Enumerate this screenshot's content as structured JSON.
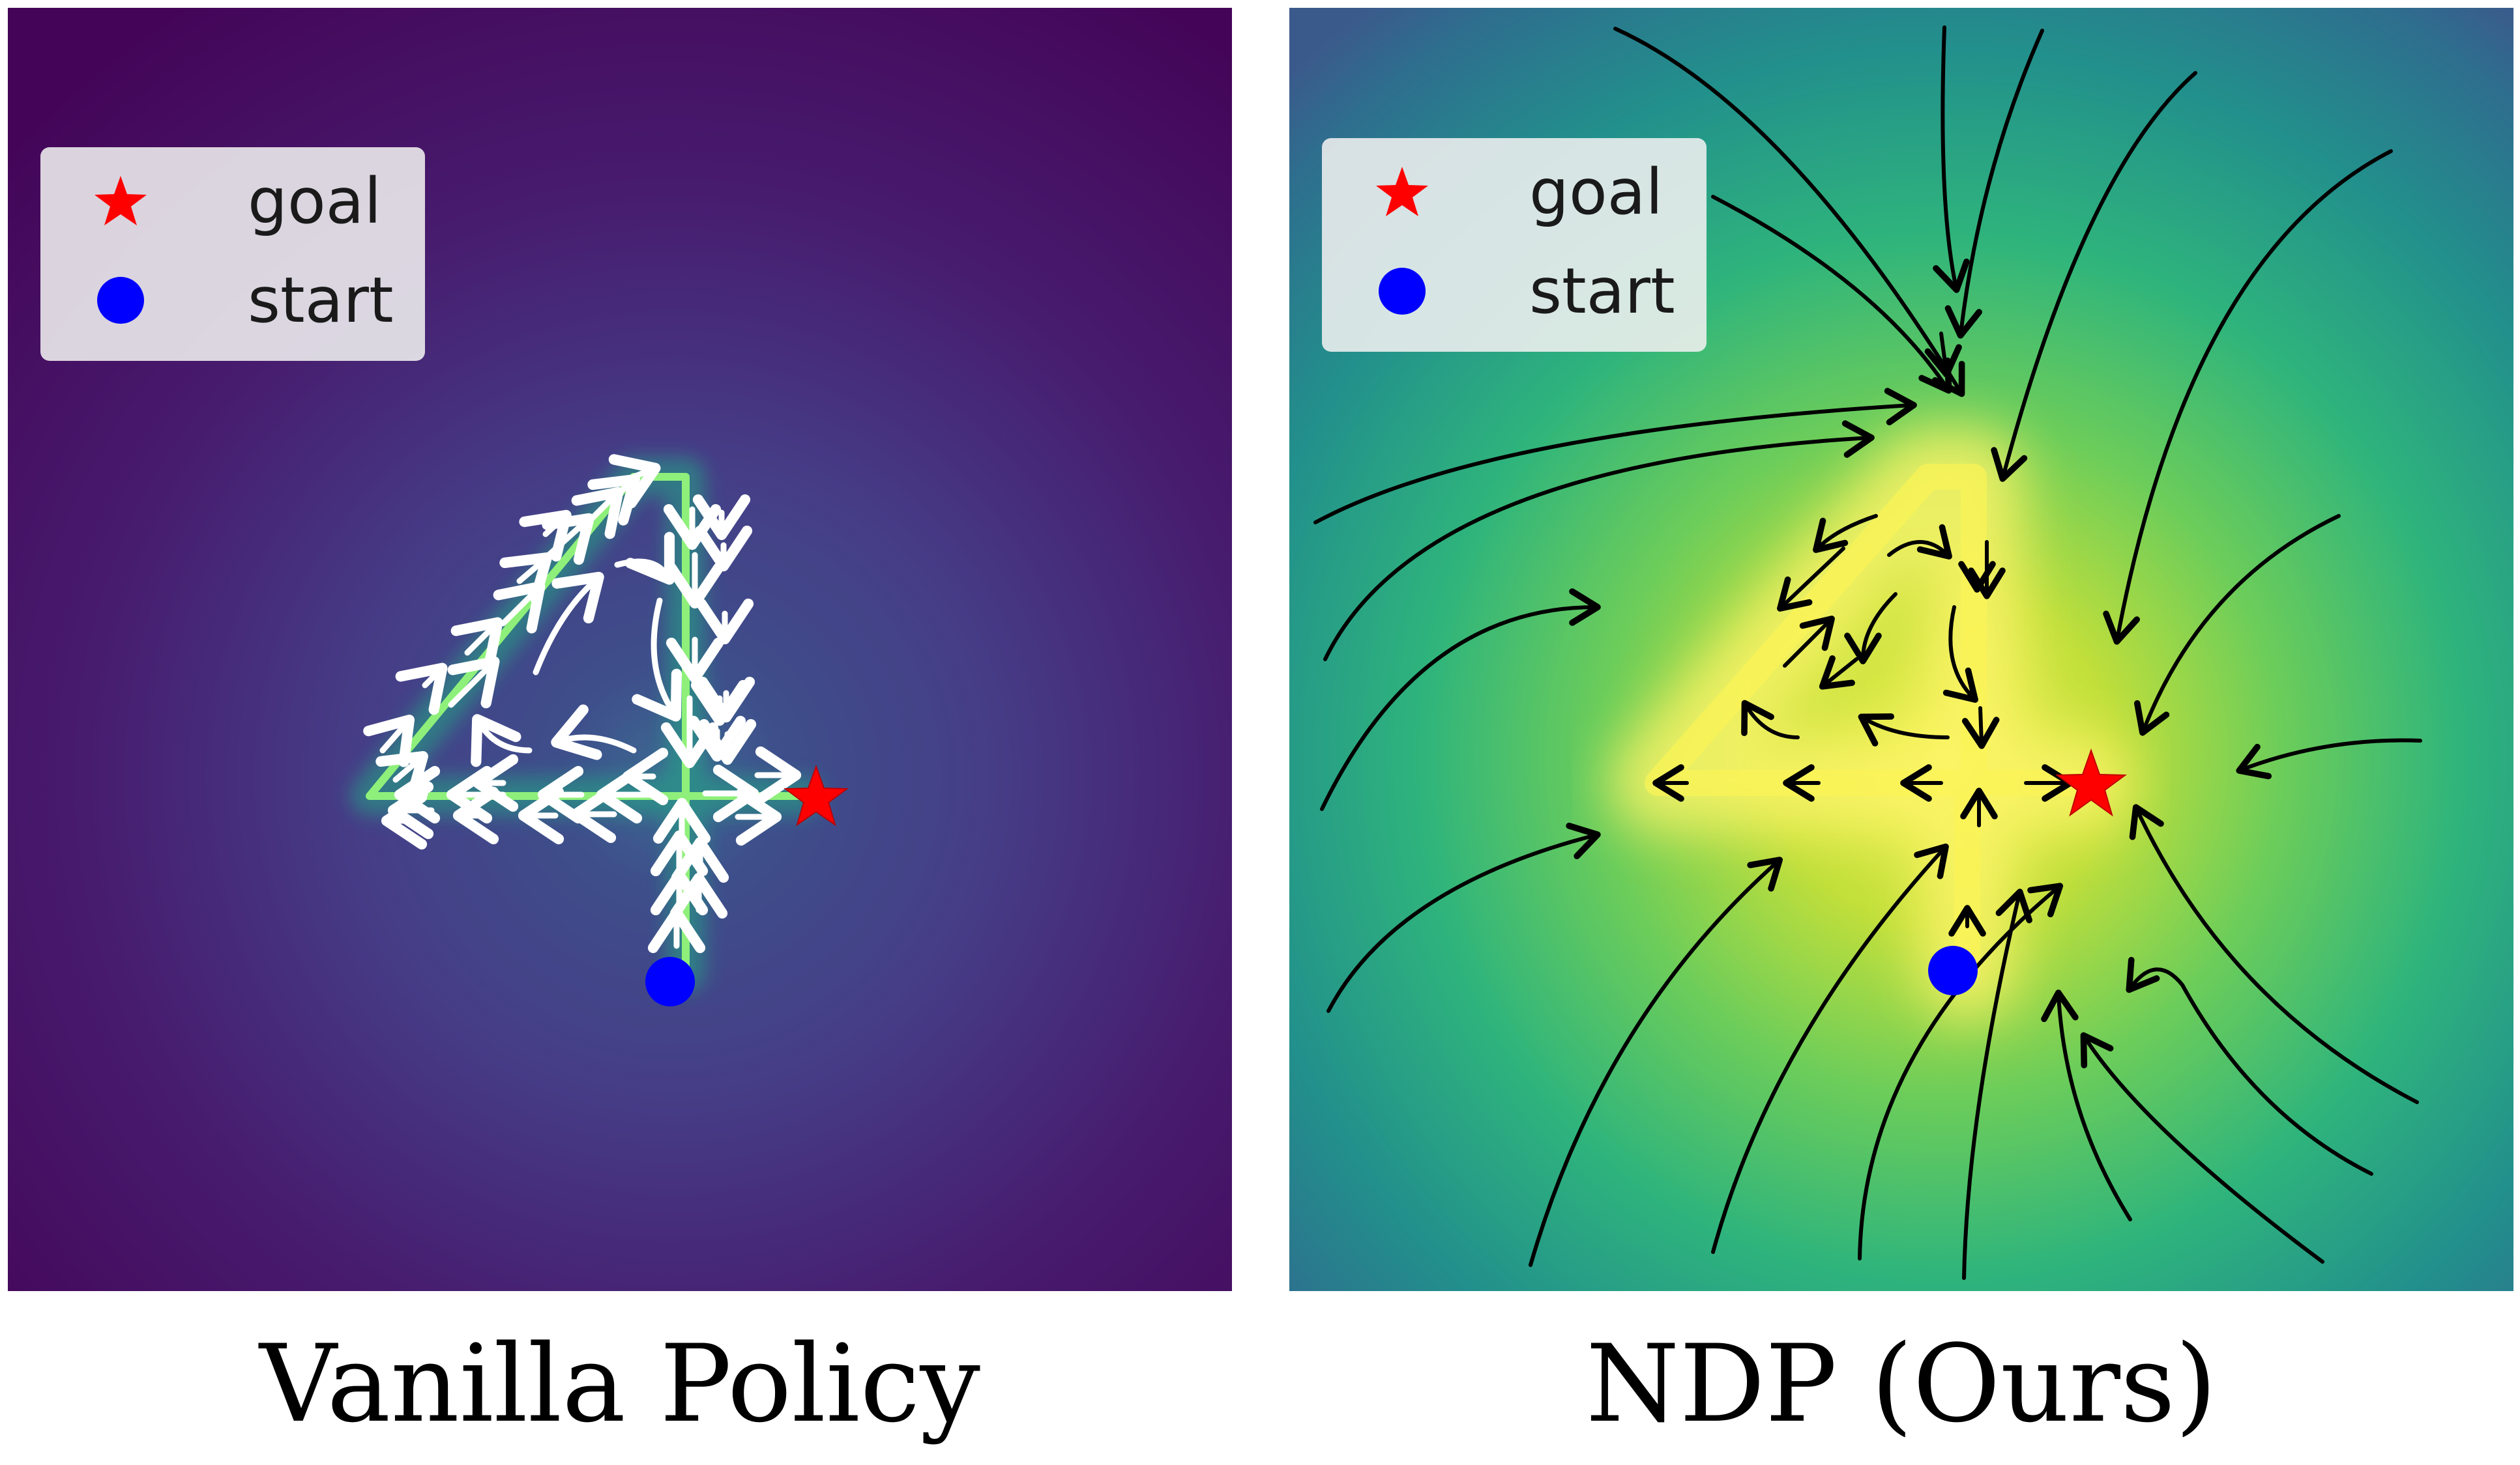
{
  "panels": [
    {
      "id": "vanilla",
      "caption": "Vanilla Policy",
      "legend": [
        {
          "label": "goal",
          "marker": "red-star",
          "color": "#ff0000"
        },
        {
          "label": "start",
          "marker": "blue-circle",
          "color": "#0000ff"
        }
      ],
      "background": "viridis-dark",
      "arrow_color": "#ffffff",
      "trace_color": "#7cff7c"
    },
    {
      "id": "ndp",
      "caption": "NDP (Ours)",
      "legend": [
        {
          "label": "goal",
          "marker": "red-star",
          "color": "#ff0000"
        },
        {
          "label": "start",
          "marker": "blue-circle",
          "color": "#0000ff"
        }
      ],
      "background": "viridis-bright",
      "arrow_color": "#000000"
    }
  ],
  "colors": {
    "viridis_purple": "#46085c",
    "viridis_blue": "#3b528b",
    "viridis_teal": "#21918c",
    "viridis_green": "#5ec962",
    "viridis_yellow": "#fde725"
  }
}
